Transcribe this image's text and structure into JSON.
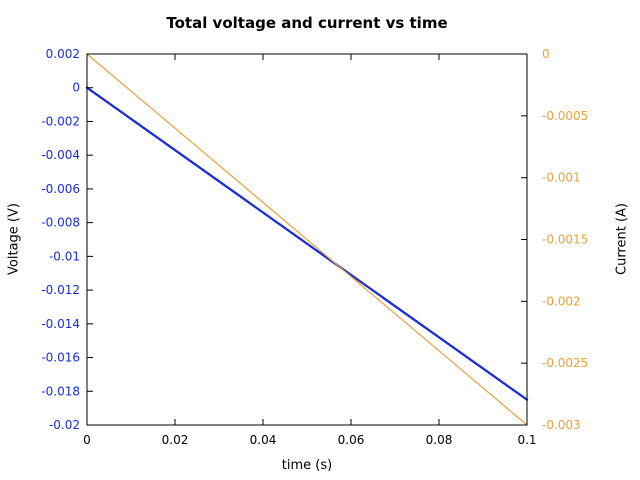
{
  "title": "Total voltage and current vs time",
  "colors": {
    "voltage_blue": "#1c2dd6",
    "current_orange": "#e9a23b",
    "frame_black": "#000000",
    "background": "#ffffff"
  },
  "chart_data": {
    "type": "line",
    "title": "Total voltage and current vs time",
    "xlabel": "time (s)",
    "ylabel_left": "Voltage (V)",
    "ylabel_right": "Current (A)",
    "x_range": [
      0,
      0.1
    ],
    "y_left_range": [
      -0.02,
      0.002
    ],
    "y_right_range": [
      -0.003,
      0
    ],
    "grid": false,
    "legend": "none",
    "x_ticks": {
      "values": [
        0,
        0.02,
        0.04,
        0.06,
        0.08,
        0.1
      ],
      "labels": [
        "0",
        "0.02",
        "0.04",
        "0.06",
        "0.08",
        "0.1"
      ]
    },
    "y_left_ticks": {
      "values": [
        0.002,
        0,
        -0.002,
        -0.004,
        -0.006,
        -0.008,
        -0.01,
        -0.012,
        -0.014,
        -0.016,
        -0.018,
        -0.02
      ],
      "labels": [
        "0.002",
        "0",
        "-0.002",
        "-0.004",
        "-0.006",
        "-0.008",
        "-0.01",
        "-0.012",
        "-0.014",
        "-0.016",
        "-0.018",
        "-0.02"
      ]
    },
    "y_right_ticks": {
      "values": [
        0,
        -0.0005,
        -0.001,
        -0.0015,
        -0.002,
        -0.0025,
        -0.003
      ],
      "labels": [
        "0",
        "-0.0005",
        "-0.001",
        "-0.0015",
        "-0.002",
        "-0.0025",
        "-0.003"
      ]
    },
    "series": [
      {
        "name": "total-voltage",
        "axis": "left",
        "color": "#1c2dd6",
        "line_width": 2.3,
        "x": [
          0,
          0.1
        ],
        "y": [
          0,
          -0.0185
        ]
      },
      {
        "name": "total-current",
        "axis": "right",
        "color": "#e9a23b",
        "line_width": 1.2,
        "x": [
          0,
          0.1
        ],
        "y": [
          0,
          -0.003
        ]
      }
    ]
  }
}
